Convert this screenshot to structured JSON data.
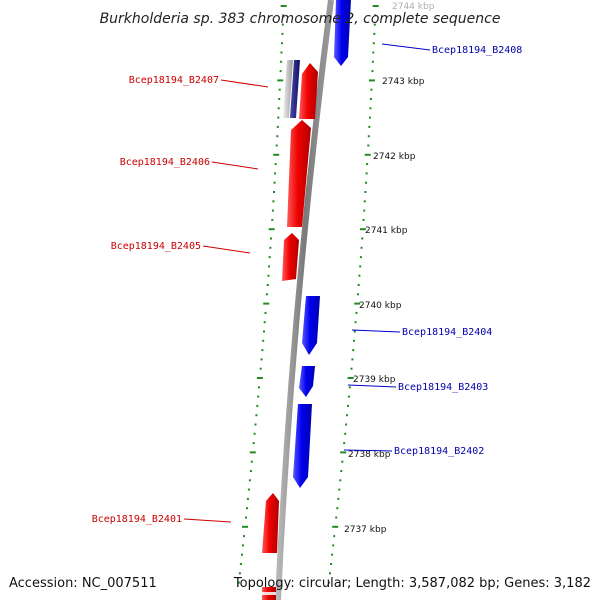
{
  "title": "Burkholderia sp. 383 chromosome 2, complete sequence",
  "footer": {
    "accession": "Accession: NC_007511",
    "topology": "Topology: circular; Length: 3,587,082 bp; Genes: 3,182"
  },
  "scale_labels": [
    "2744 kbp",
    "2743 kbp",
    "2742 kbp",
    "2741 kbp",
    "2740 kbp",
    "2739 kbp",
    "2738 kbp",
    "2737 kbp"
  ],
  "colors": {
    "forward_gene": "#0000ee",
    "reverse_gene": "#ee0000",
    "backbone": "#808080",
    "tick": "#228b22",
    "forward_label": "#0000aa",
    "reverse_label": "#cc0000"
  },
  "genes": [
    {
      "id": "Bcep18194_B2408",
      "strand": "forward"
    },
    {
      "id": "Bcep18194_B2407",
      "strand": "reverse"
    },
    {
      "id": "Bcep18194_B2406",
      "strand": "reverse"
    },
    {
      "id": "Bcep18194_B2405",
      "strand": "reverse"
    },
    {
      "id": "Bcep18194_B2404",
      "strand": "forward"
    },
    {
      "id": "Bcep18194_B2403",
      "strand": "forward"
    },
    {
      "id": "Bcep18194_B2402",
      "strand": "forward"
    },
    {
      "id": "Bcep18194_B2401",
      "strand": "reverse"
    }
  ]
}
